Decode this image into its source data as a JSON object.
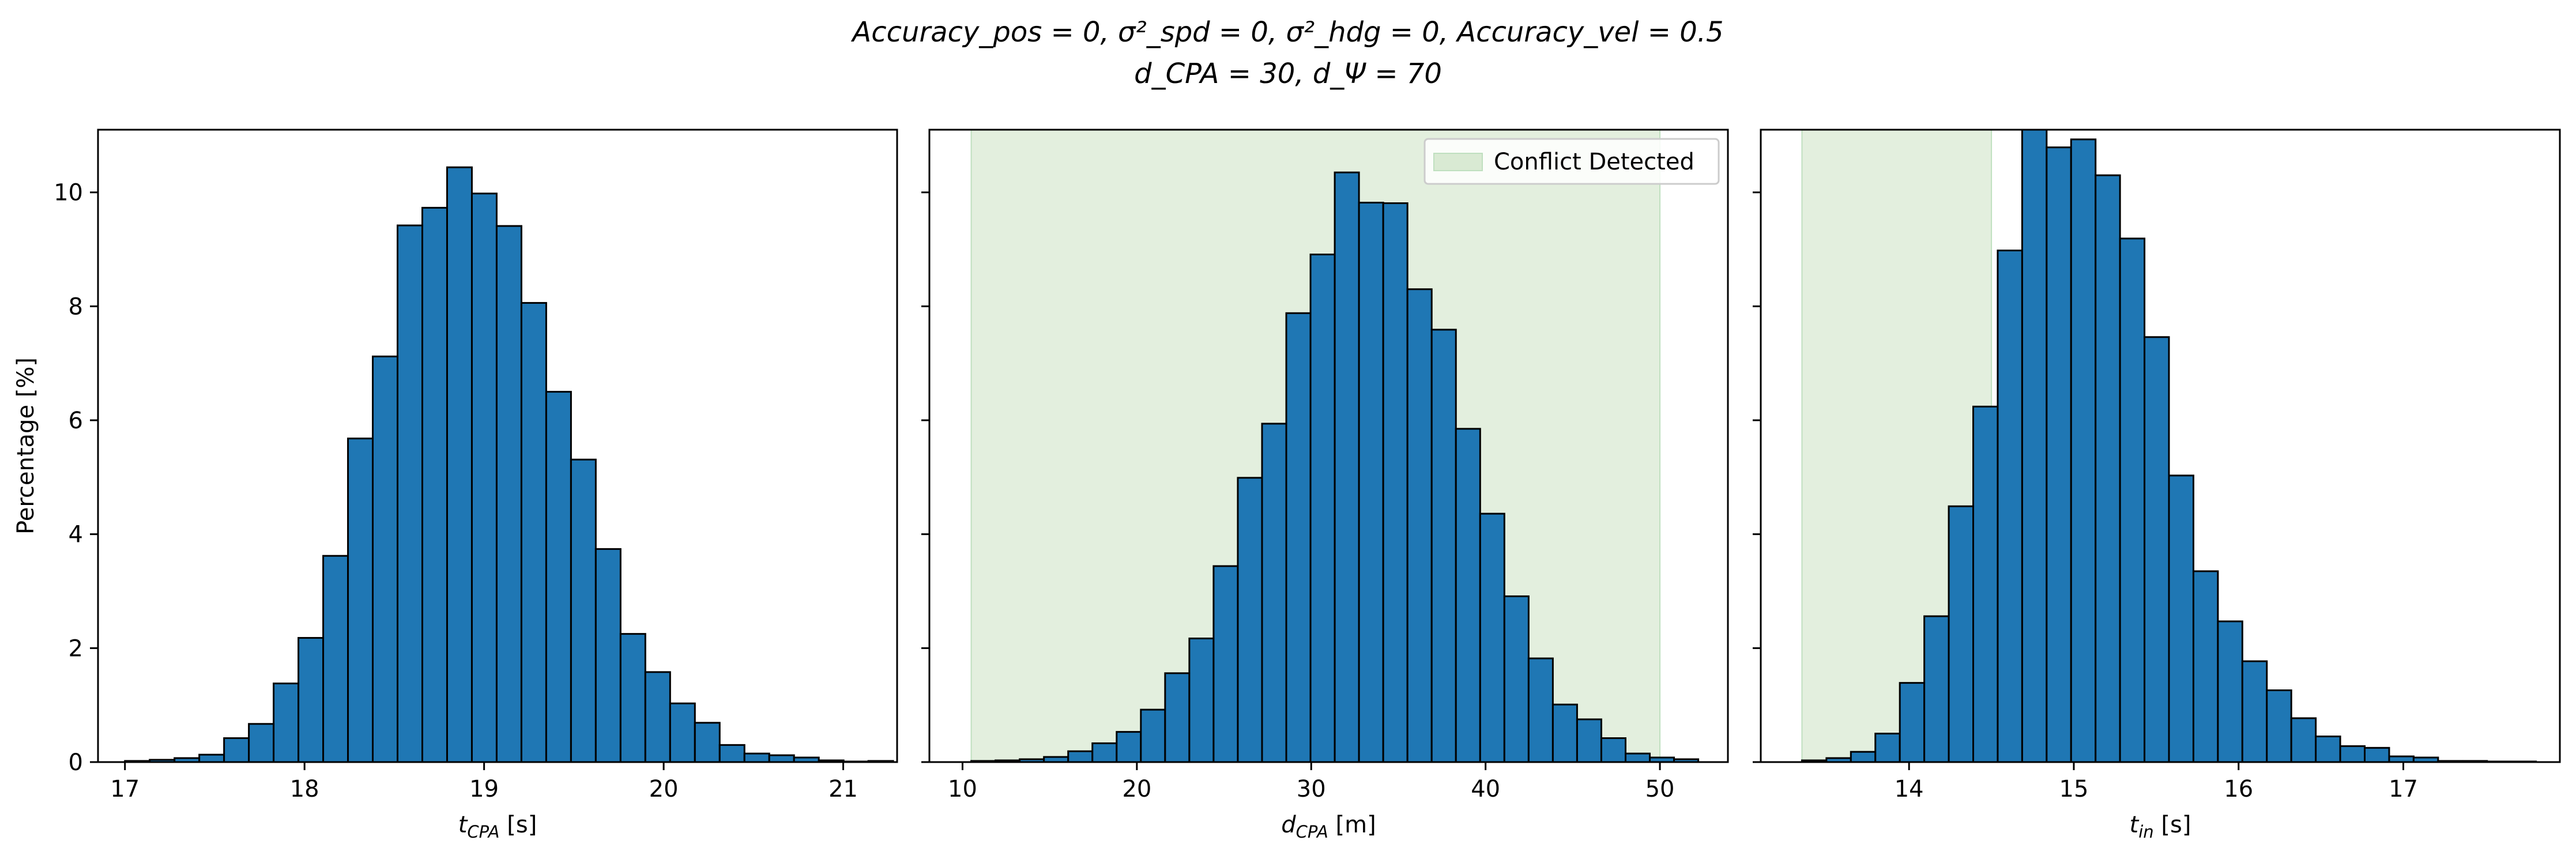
{
  "figure": {
    "title_line1": "Accuracy_pos = 0, σ²_spd = 0, σ²_hdg = 0, Accuracy_vel = 0.5",
    "title_line2": "d_CPA = 30, d_Ψ = 70"
  },
  "colors": {
    "bar_fill": "#1f77b4",
    "bar_edge": "#000000",
    "shade": "#d9ead3",
    "shade_edge": "#bfe0bf"
  },
  "chart_data": [
    {
      "type": "bar",
      "xlabel": "t_CPA [s]",
      "ylabel": "Percentage [%]",
      "xlim": [
        16.85,
        21.3
      ],
      "ylim": [
        0,
        11.1
      ],
      "xticks": [
        17,
        18,
        19,
        20,
        21
      ],
      "yticks": [
        0,
        2,
        4,
        6,
        8,
        10
      ],
      "bin_start": 17.0,
      "bin_width": 0.138,
      "values": [
        0.02,
        0.04,
        0.07,
        0.13,
        0.42,
        0.67,
        1.38,
        2.18,
        3.62,
        5.68,
        7.12,
        9.42,
        9.73,
        10.44,
        9.98,
        9.41,
        8.06,
        6.5,
        5.31,
        3.74,
        2.25,
        1.58,
        1.03,
        0.69,
        0.3,
        0.15,
        0.12,
        0.08,
        0.03,
        0.01,
        0.02
      ],
      "shade": null,
      "legend": null
    },
    {
      "type": "bar",
      "xlabel": "d_CPA [m]",
      "ylabel": "",
      "xlim": [
        8.1,
        53.9
      ],
      "ylim": [
        0,
        11.1
      ],
      "xticks": [
        10,
        20,
        30,
        40,
        50
      ],
      "yticks": [
        0,
        2,
        4,
        6,
        8,
        10
      ],
      "bin_start": 10.5,
      "bin_width": 1.39,
      "values": [
        0.02,
        0.03,
        0.05,
        0.09,
        0.19,
        0.33,
        0.53,
        0.92,
        1.56,
        2.17,
        3.44,
        4.99,
        5.94,
        7.88,
        8.91,
        10.35,
        9.82,
        9.81,
        8.3,
        7.59,
        5.85,
        4.36,
        2.91,
        1.82,
        1.01,
        0.75,
        0.42,
        0.15,
        0.08,
        0.05
      ],
      "shade": [
        10.5,
        50.0
      ],
      "legend": {
        "label": "Conflict Detected",
        "position": "top-right"
      }
    },
    {
      "type": "bar",
      "xlabel": "t_in [s]",
      "ylabel": "",
      "xlim": [
        13.1,
        17.95
      ],
      "ylim": [
        0,
        11.1
      ],
      "xticks": [
        14,
        15,
        16,
        17
      ],
      "yticks": [
        0,
        2,
        4,
        6,
        8,
        10
      ],
      "bin_start": 13.35,
      "bin_width": 0.1485,
      "values": [
        0.03,
        0.07,
        0.18,
        0.5,
        1.39,
        2.56,
        4.49,
        6.24,
        8.98,
        11.21,
        10.79,
        10.93,
        10.3,
        9.19,
        7.46,
        5.03,
        3.35,
        2.47,
        1.77,
        1.26,
        0.77,
        0.45,
        0.28,
        0.25,
        0.1,
        0.08,
        0.02,
        0.02,
        0.01,
        0.01
      ],
      "shade": [
        13.35,
        14.5
      ],
      "legend": null
    }
  ]
}
